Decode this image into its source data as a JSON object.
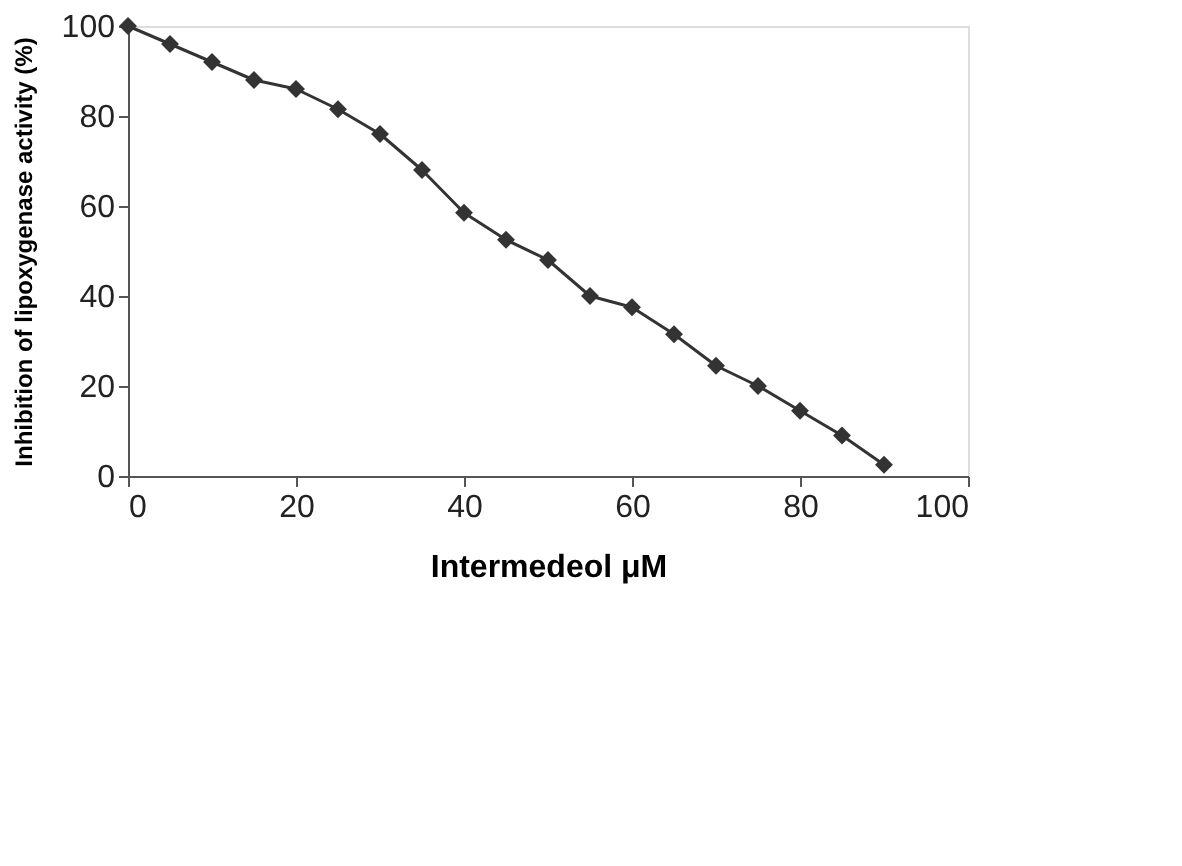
{
  "chart_data": {
    "type": "line",
    "xlabel": "Intermedeol μM",
    "ylabel": "Inhibition of lipoxygenase activity (%)",
    "x": [
      0,
      5,
      10,
      15,
      20,
      25,
      30,
      35,
      40,
      45,
      50,
      55,
      60,
      65,
      70,
      75,
      80,
      85,
      90
    ],
    "series": [
      {
        "color": "#333333",
        "values": [
          100,
          96,
          92,
          88,
          86,
          81.5,
          76,
          68,
          58.5,
          52.5,
          48,
          40,
          37.5,
          31.5,
          24.5,
          20,
          14.5,
          9,
          2.5
        ]
      }
    ],
    "xlim": [
      0,
      100
    ],
    "xticks": [
      0,
      20,
      40,
      60,
      80,
      100
    ],
    "ylim": [
      0,
      100
    ],
    "yticks": [
      0,
      20,
      40,
      60,
      80,
      100
    ],
    "grid": false,
    "marker": "diamond",
    "line_style": "solid"
  }
}
